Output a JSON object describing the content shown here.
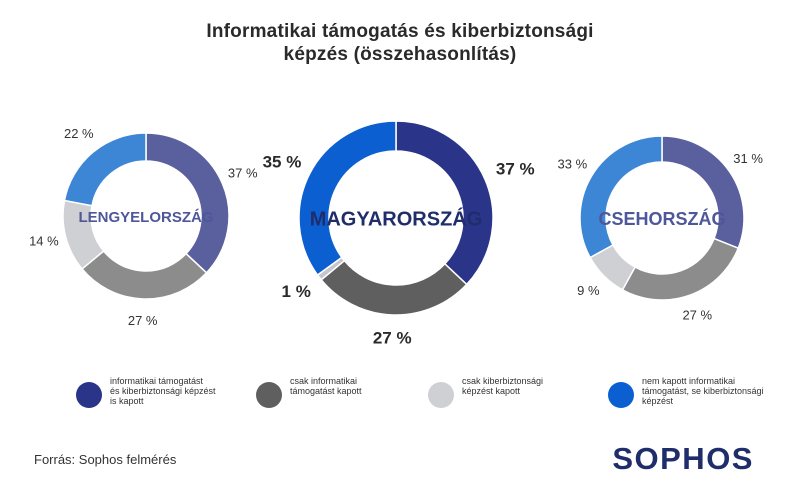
{
  "title_lines": [
    "Informatikai támogatás és kiberbiztonsági",
    "képzés  (összehasonlítás)"
  ],
  "source": "Forrás: Sophos felmérés",
  "logo": "SOPHOS",
  "colors": {
    "lengyel": [
      "#5a5f9e",
      "#8c8c8c",
      "#cfd0d4",
      "#3d86d6"
    ],
    "magyar": [
      "#2a3488",
      "#5f5f5f",
      "#c4c6cc",
      "#0b5fd0"
    ],
    "cseh": [
      "#5a5f9e",
      "#8c8c8c",
      "#cfd0d4",
      "#3d86d6"
    ],
    "country_text": "#4d5799",
    "country_text_main": "#1f2d6b"
  },
  "legend": [
    {
      "label": "informatikai támogatást\nés kiberbiztonsági képzést\nis kapott",
      "color": "#2a3488"
    },
    {
      "label": "csak informatikai\ntámogatást kapott",
      "color": "#5f5f5f"
    },
    {
      "label": "csak kiberbiztonsági\nképzést kapott",
      "color": "#cfd0d4"
    },
    {
      "label": "nem kapott informatikai\ntámogatást, se kiberbiztonsági\nképzést",
      "color": "#0b5fd0"
    }
  ],
  "chart_data": [
    {
      "type": "pie",
      "title": "LENGYELORSZÁG",
      "labels": [
        "informatikai támogatást és kiberbiztonsági képzést is kapott",
        "csak informatikai támogatást kapott",
        "csak kiberbiztonsági képzést kapott",
        "nem kapott informatikai támogatást, se kiberbiztonsági képzést"
      ],
      "values": [
        37,
        27,
        14,
        22
      ],
      "value_labels": [
        "37 %",
        "27 %",
        "14 %",
        "22 %"
      ]
    },
    {
      "type": "pie",
      "title": "MAGYARORSZÁG",
      "labels": [
        "informatikai támogatást és kiberbiztonsági képzést is kapott",
        "csak informatikai támogatást kapott",
        "csak kiberbiztonsági képzést kapott",
        "nem kapott informatikai támogatást, se kiberbiztonsági képzést"
      ],
      "values": [
        37,
        27,
        1,
        35
      ],
      "value_labels": [
        "37 %",
        "27 %",
        "1 %",
        "35 %"
      ]
    },
    {
      "type": "pie",
      "title": "CSEHORSZÁG",
      "labels": [
        "informatikai támogatást és kiberbiztonsági képzést is kapott",
        "csak informatikai támogatást kapott",
        "csak kiberbiztonsági képzést kapott",
        "nem kapott informatikai támogatást, se kiberbiztonsági képzést"
      ],
      "values": [
        31,
        27,
        9,
        33
      ],
      "value_labels": [
        "31 %",
        "27 %",
        "9 %",
        "33 %"
      ]
    }
  ]
}
